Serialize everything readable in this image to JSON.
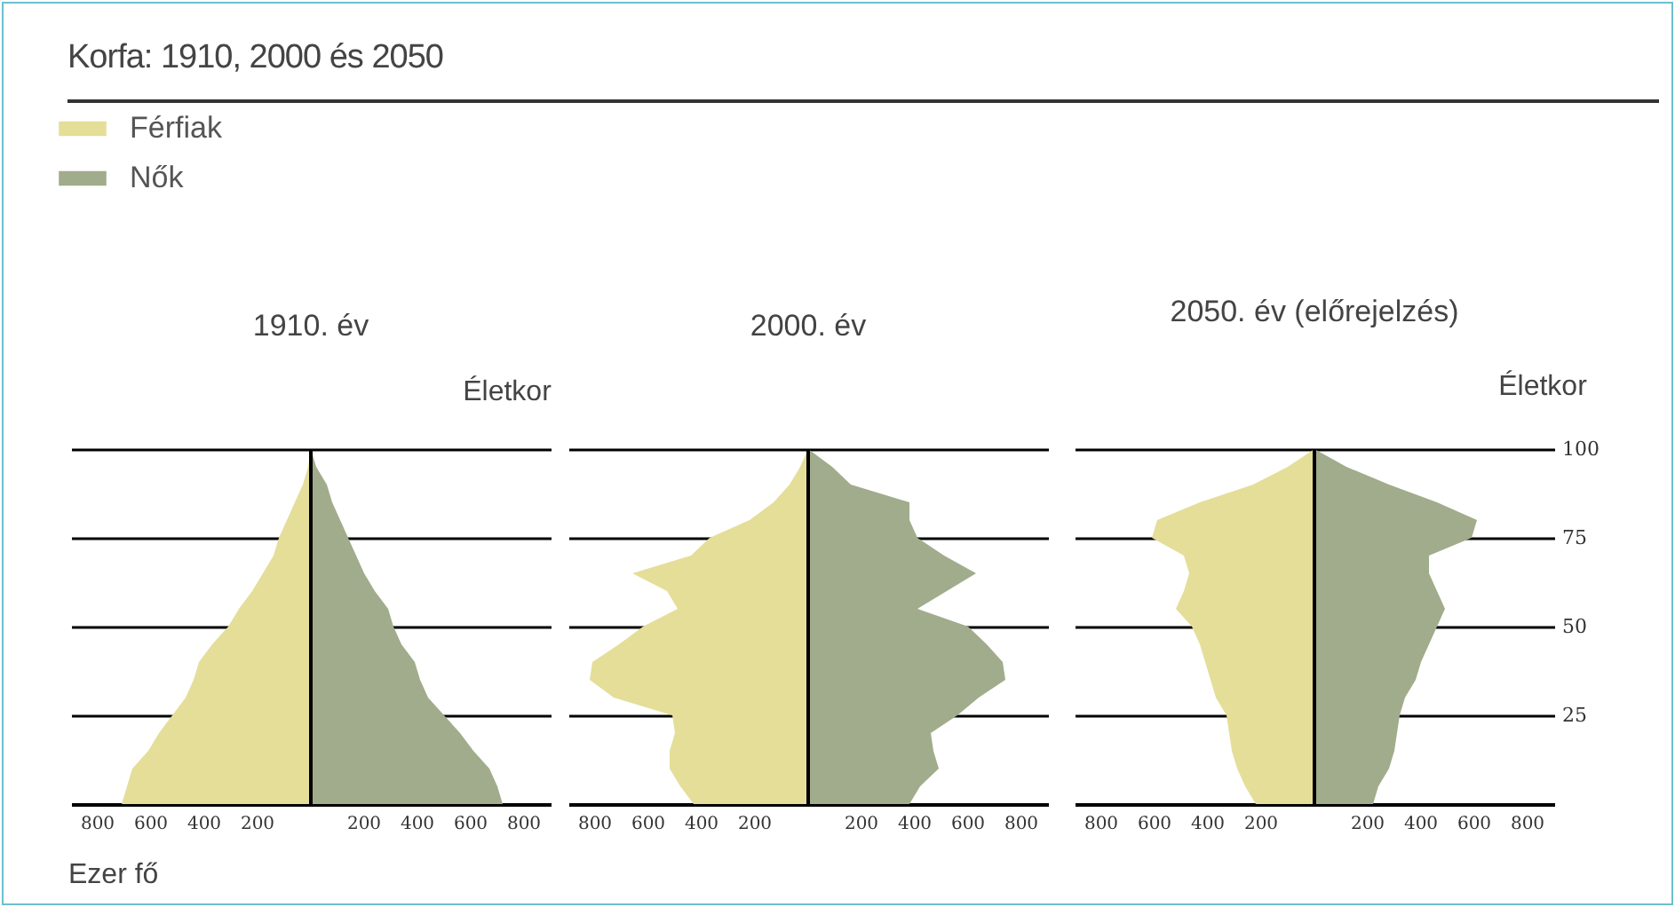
{
  "chart_data": [
    {
      "type": "area",
      "orientation": "horizontal",
      "title": "Korfa: 1910, 2000 és 2050",
      "subtitle": "1910. év",
      "xlabel": "Ezer fő",
      "ylabel": "Életkor",
      "legend": "top left",
      "grid": "y",
      "tick_labels": "x",
      "xlim": [
        -900,
        900
      ],
      "xticks": [
        {
          "value": -800,
          "label": "800"
        },
        {
          "value": -600,
          "label": "600"
        },
        {
          "value": -400,
          "label": "400"
        },
        {
          "value": -200,
          "label": "200"
        },
        200,
        400,
        600,
        800
      ],
      "ylim": [
        0,
        100
      ],
      "yticks": [
        25,
        50,
        75,
        100
      ],
      "ref_lines": [
        {
          "axis": "x",
          "value": 0,
          "color": "#000000"
        }
      ],
      "series": [
        {
          "name": "Férfiak",
          "color": "#e4de98",
          "x": [
            0,
            5,
            10,
            15,
            20,
            25,
            30,
            35,
            40,
            45,
            50,
            55,
            60,
            65,
            70,
            75,
            80,
            85,
            90,
            95,
            100
          ],
          "values": [
            -710,
            -690,
            -670,
            -610,
            -570,
            -520,
            -470,
            -440,
            -420,
            -370,
            -310,
            -270,
            -220,
            -180,
            -140,
            -120,
            -90,
            -60,
            -30,
            -10,
            0
          ]
        },
        {
          "name": "Nők",
          "color": "#a0ac8b",
          "x": [
            0,
            5,
            10,
            15,
            20,
            25,
            30,
            35,
            40,
            45,
            50,
            55,
            60,
            65,
            70,
            75,
            80,
            85,
            90,
            95,
            100
          ],
          "values": [
            720,
            700,
            670,
            610,
            560,
            500,
            440,
            410,
            390,
            340,
            310,
            290,
            240,
            200,
            170,
            140,
            110,
            80,
            60,
            20,
            0
          ]
        }
      ]
    },
    {
      "type": "area",
      "orientation": "horizontal",
      "subtitle": "2000. év",
      "grid": "y",
      "tick_labels": "x",
      "xlim": [
        -900,
        900
      ],
      "xticks": [
        {
          "value": -800,
          "label": "800"
        },
        {
          "value": -600,
          "label": "600"
        },
        {
          "value": -400,
          "label": "400"
        },
        {
          "value": -200,
          "label": "200"
        },
        200,
        400,
        600,
        800
      ],
      "ylim": [
        0,
        100
      ],
      "yticks": [
        25,
        50,
        75,
        100
      ],
      "ref_lines": [
        {
          "axis": "x",
          "value": 0,
          "color": "#000000"
        }
      ],
      "series": [
        {
          "color": "#e4de98",
          "x": [
            0,
            5,
            10,
            15,
            20,
            25,
            30,
            35,
            40,
            45,
            50,
            55,
            60,
            65,
            70,
            75,
            80,
            85,
            90,
            95,
            100
          ],
          "values": [
            -430,
            -480,
            -520,
            -520,
            -500,
            -510,
            -730,
            -820,
            -810,
            -710,
            -620,
            -490,
            -530,
            -660,
            -440,
            -370,
            -220,
            -130,
            -70,
            -30,
            0
          ]
        },
        {
          "color": "#a0ac8b",
          "x": [
            0,
            5,
            10,
            15,
            20,
            25,
            30,
            35,
            40,
            45,
            50,
            55,
            60,
            65,
            70,
            75,
            80,
            85,
            90,
            95,
            100
          ],
          "values": [
            380,
            420,
            490,
            470,
            460,
            560,
            640,
            740,
            730,
            670,
            600,
            410,
            520,
            630,
            510,
            410,
            380,
            380,
            160,
            90,
            0
          ]
        }
      ]
    },
    {
      "type": "area",
      "orientation": "horizontal",
      "subtitle": "2050. év (előrejelzés)",
      "ylabel": "Életkor",
      "grid": "y",
      "xlim": [
        -900,
        900
      ],
      "xticks": [
        {
          "value": -800,
          "label": "800"
        },
        {
          "value": -600,
          "label": "600"
        },
        {
          "value": -400,
          "label": "400"
        },
        {
          "value": -200,
          "label": "200"
        },
        200,
        400,
        600,
        800
      ],
      "ylim": [
        0,
        100
      ],
      "yticks": [
        25,
        50,
        75,
        100
      ],
      "ref_lines": [
        {
          "axis": "x",
          "value": 0,
          "color": "#000000"
        }
      ],
      "series": [
        {
          "color": "#e4de98",
          "x": [
            0,
            5,
            10,
            15,
            20,
            25,
            30,
            35,
            40,
            45,
            50,
            55,
            60,
            65,
            70,
            75,
            80,
            85,
            90,
            95,
            100
          ],
          "values": [
            -220,
            -260,
            -290,
            -310,
            -320,
            -330,
            -370,
            -390,
            -410,
            -430,
            -460,
            -520,
            -490,
            -470,
            -490,
            -610,
            -590,
            -430,
            -230,
            -100,
            0
          ]
        },
        {
          "color": "#a0ac8b",
          "x": [
            0,
            5,
            10,
            15,
            20,
            25,
            30,
            35,
            40,
            45,
            50,
            55,
            60,
            65,
            70,
            75,
            80,
            85,
            90,
            95,
            100
          ],
          "values": [
            220,
            240,
            280,
            300,
            310,
            320,
            340,
            380,
            400,
            430,
            460,
            490,
            460,
            430,
            430,
            590,
            610,
            460,
            280,
            120,
            0
          ]
        }
      ]
    }
  ]
}
